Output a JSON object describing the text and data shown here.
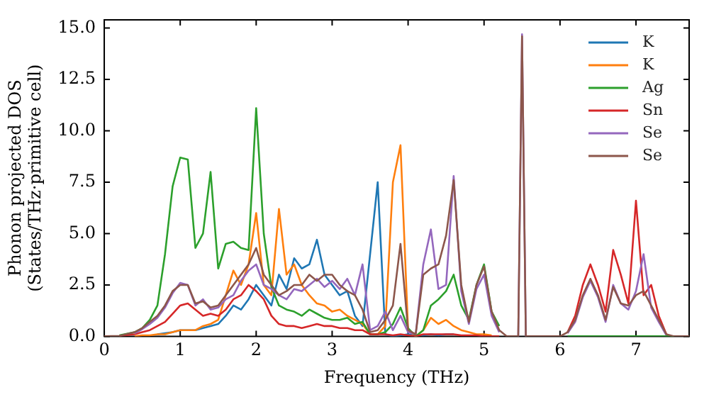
{
  "chart_data": {
    "type": "line",
    "xlabel": "Frequency (THz)",
    "ylabel": "Phonon projected DOS\n(States/THz·primitive cell)",
    "x": [
      0,
      0.2,
      0.4,
      0.5,
      0.6,
      0.7,
      0.8,
      0.9,
      1.0,
      1.1,
      1.2,
      1.3,
      1.4,
      1.5,
      1.6,
      1.7,
      1.8,
      1.9,
      2.0,
      2.1,
      2.2,
      2.3,
      2.4,
      2.5,
      2.6,
      2.7,
      2.8,
      2.9,
      3.0,
      3.1,
      3.2,
      3.3,
      3.4,
      3.5,
      3.6,
      3.7,
      3.8,
      3.9,
      4.0,
      4.1,
      4.2,
      4.3,
      4.4,
      4.5,
      4.6,
      4.7,
      4.8,
      4.9,
      5.0,
      5.1,
      5.2,
      5.3,
      5.4,
      5.45,
      5.5,
      5.55,
      5.6,
      5.8,
      6.0,
      6.1,
      6.2,
      6.3,
      6.4,
      6.5,
      6.6,
      6.7,
      6.8,
      6.9,
      7.0,
      7.1,
      7.2,
      7.3,
      7.4,
      7.5,
      7.6,
      7.7
    ],
    "series": [
      {
        "name": "K",
        "color": "#1f77b4",
        "values": [
          null,
          null,
          null,
          null,
          null,
          0.1,
          0.15,
          0.2,
          0.3,
          0.3,
          0.3,
          0.4,
          0.5,
          0.6,
          1.0,
          1.5,
          1.3,
          1.8,
          2.5,
          2.0,
          1.5,
          3.0,
          2.3,
          3.8,
          3.3,
          3.5,
          4.7,
          3.0,
          2.5,
          2.0,
          2.2,
          1.0,
          0.5,
          4.0,
          7.5,
          0.1,
          0,
          0.05,
          0.1,
          0.05,
          0.05,
          0.1,
          0.05,
          0.1,
          0.1,
          null,
          null,
          null,
          null,
          null,
          null,
          null,
          null,
          null,
          null,
          null,
          null,
          null,
          null,
          null,
          null,
          null,
          null,
          null,
          null,
          null,
          null,
          null,
          null,
          null,
          null,
          null,
          null,
          null,
          null,
          null
        ]
      },
      {
        "name": "K",
        "color": "#ff7f0e",
        "values": [
          null,
          null,
          0,
          0.05,
          0.05,
          0.1,
          0.1,
          0.2,
          0.3,
          0.3,
          0.3,
          0.5,
          0.6,
          0.8,
          2.0,
          3.2,
          2.5,
          3.5,
          6.0,
          2.5,
          2.0,
          6.2,
          3.0,
          3.5,
          2.5,
          2.0,
          1.6,
          1.5,
          1.2,
          1.3,
          1.0,
          0.8,
          0.6,
          0.1,
          0.1,
          0.5,
          7.5,
          9.3,
          0.3,
          0,
          0.3,
          0.9,
          0.6,
          0.8,
          0.5,
          0.3,
          0.2,
          0.1,
          0.1,
          0.05,
          null,
          null,
          null,
          null,
          null,
          null,
          null,
          null,
          null,
          null,
          null,
          null,
          null,
          null,
          null,
          null,
          null,
          null,
          null,
          null,
          null,
          null,
          null,
          null,
          null,
          null
        ]
      },
      {
        "name": "Ag",
        "color": "#2ca02c",
        "values": [
          null,
          0.05,
          0.2,
          0.4,
          0.8,
          1.5,
          4,
          7.3,
          8.7,
          8.6,
          4.3,
          5.0,
          8.0,
          3.3,
          4.5,
          4.6,
          4.3,
          4.2,
          11.1,
          5,
          2.4,
          1.5,
          1.3,
          1.2,
          1.0,
          1.3,
          1.1,
          0.9,
          0.8,
          0.8,
          0.9,
          0.6,
          0.7,
          0.1,
          0.1,
          0.2,
          0.6,
          1.4,
          0.4,
          0,
          0.3,
          1.5,
          1.8,
          2.2,
          3.0,
          1.5,
          0.8,
          2.5,
          3.5,
          1.2,
          0.5,
          null,
          null,
          null,
          null,
          null,
          null,
          null,
          null,
          0,
          0,
          0,
          0,
          0,
          0,
          0,
          0,
          0,
          0,
          0,
          0,
          0,
          0,
          0,
          null,
          null
        ]
      },
      {
        "name": "Sn",
        "color": "#d62728",
        "values": [
          null,
          0.02,
          0.1,
          0.2,
          0.3,
          0.5,
          0.7,
          1.1,
          1.5,
          1.6,
          1.3,
          1.0,
          1.1,
          1.0,
          1.3,
          1.8,
          2.0,
          2.5,
          2.2,
          1.8,
          1.0,
          0.6,
          0.5,
          0.5,
          0.4,
          0.5,
          0.6,
          0.5,
          0.5,
          0.4,
          0.4,
          0.3,
          0.3,
          0.1,
          0.1,
          0.1,
          0.05,
          0.1,
          0.05,
          0,
          0.1,
          0.1,
          0.1,
          0.1,
          0.1,
          0.05,
          0.05,
          0.05,
          0,
          0,
          0,
          null,
          null,
          null,
          null,
          null,
          null,
          null,
          null,
          0.2,
          1.0,
          2.5,
          3.5,
          2.5,
          1.2,
          4.2,
          3.0,
          1.6,
          6.6,
          2.0,
          2.5,
          1.0,
          0.1,
          null,
          null,
          null
        ]
      },
      {
        "name": "Se",
        "color": "#9467bd",
        "values": [
          null,
          null,
          0.15,
          0.35,
          0.6,
          0.9,
          1.4,
          2.1,
          2.6,
          2.5,
          1.5,
          1.8,
          1.3,
          1.4,
          1.8,
          2.0,
          2.7,
          3.2,
          3.5,
          2.5,
          2.3,
          2.0,
          1.8,
          2.3,
          2.2,
          2.5,
          2.8,
          2.4,
          2.7,
          2.3,
          2.8,
          2.0,
          3.5,
          0.3,
          0.5,
          1.2,
          0.3,
          1.0,
          0.2,
          0.1,
          3.5,
          5.2,
          2.3,
          2.5,
          7.8,
          2.2,
          0.6,
          2.3,
          3.0,
          1.0,
          0.2,
          null,
          null,
          0,
          14.7,
          0,
          null,
          null,
          null,
          0.15,
          0.7,
          1.9,
          2.7,
          1.9,
          0.7,
          2.5,
          1.6,
          1.3,
          2.2,
          4.0,
          1.4,
          0.7,
          0.05,
          null,
          null,
          null
        ]
      },
      {
        "name": "Se",
        "color": "#8c564b",
        "values": [
          0,
          0.02,
          0.2,
          0.4,
          0.7,
          1.0,
          1.5,
          2.2,
          2.5,
          2.5,
          1.6,
          1.7,
          1.4,
          1.5,
          2.0,
          2.5,
          3.0,
          3.5,
          4.3,
          3.0,
          2.5,
          2.0,
          2.2,
          2.5,
          2.5,
          3.0,
          2.7,
          3.0,
          3.0,
          2.5,
          2.2,
          2.0,
          1.3,
          0.2,
          0.3,
          0.8,
          1.5,
          4.5,
          0.3,
          0.1,
          3.0,
          3.3,
          3.5,
          4.9,
          7.6,
          2.5,
          0.7,
          2.5,
          3.4,
          1.2,
          0.3,
          0,
          0,
          0,
          14.6,
          0,
          0,
          0,
          0,
          0.2,
          0.8,
          2.0,
          2.8,
          2.0,
          0.8,
          2.4,
          1.6,
          1.5,
          2.0,
          2.2,
          1.5,
          0.8,
          0.1,
          0,
          0,
          0
        ]
      }
    ],
    "xlim": [
      0,
      7.7
    ],
    "xticks": [
      0,
      1,
      2,
      3,
      4,
      5,
      6,
      7
    ],
    "ylim": [
      0,
      15.4
    ],
    "yticks": [
      {
        "value": 0,
        "label": "0.0"
      },
      {
        "value": 2.5,
        "label": "2.5"
      },
      {
        "value": 5,
        "label": "5.0"
      },
      {
        "value": 7.5,
        "label": "7.5"
      },
      {
        "value": 10,
        "label": "10.0"
      },
      {
        "value": 12.5,
        "label": "12.5"
      },
      {
        "value": 15,
        "label": "15.0"
      }
    ],
    "grid": false,
    "legend": "top right",
    "marker": "none",
    "line_style": "solid"
  }
}
